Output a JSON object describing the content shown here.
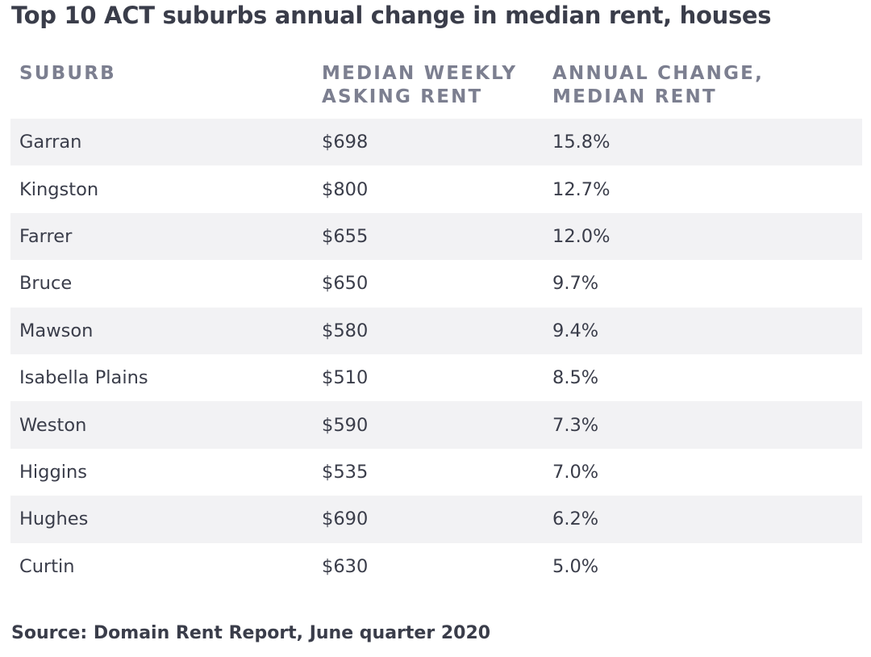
{
  "title": "Top 10 ACT suburbs annual change in median rent, houses",
  "source": "Source: Domain Rent Report, June quarter 2020",
  "colors": {
    "text": "#3a3d4a",
    "header_text": "#7c7f90",
    "row_shade": "#f2f2f4"
  },
  "chart_data": {
    "type": "table",
    "title": "Top 10 ACT suburbs annual change in median rent, houses",
    "columns": [
      [
        "SUBURB"
      ],
      [
        "MEDIAN WEEKLY",
        "ASKING RENT"
      ],
      [
        "ANNUAL CHANGE,",
        "MEDIAN RENT"
      ]
    ],
    "rows": [
      [
        "Garran",
        "$698",
        "15.8%"
      ],
      [
        "Kingston",
        "$800",
        "12.7%"
      ],
      [
        "Farrer",
        "$655",
        "12.0%"
      ],
      [
        "Bruce",
        "$650",
        "9.7%"
      ],
      [
        "Mawson",
        "$580",
        "9.4%"
      ],
      [
        "Isabella Plains",
        "$510",
        "8.5%"
      ],
      [
        "Weston",
        "$590",
        "7.3%"
      ],
      [
        "Higgins",
        "$535",
        "7.0%"
      ],
      [
        "Hughes",
        "$690",
        "6.2%"
      ],
      [
        "Curtin",
        "$630",
        "5.0%"
      ]
    ]
  }
}
